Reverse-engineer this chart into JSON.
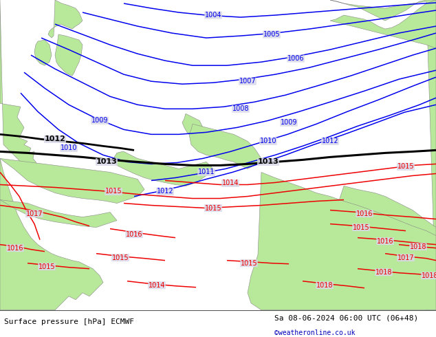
{
  "title_left": "Surface pressure [hPa] ECMWF",
  "title_right": "Sa 08-06-2024 06:00 UTC (06+48)",
  "copyright": "©weatheronline.co.uk",
  "bg_color": "#d8d8e8",
  "land_color": "#b8e89a",
  "coast_color": "#888888",
  "blue_color": "#0000ee",
  "black_color": "#000000",
  "red_color": "#ee0000",
  "footer_bg": "#ffffff",
  "copyright_color": "#0000bb",
  "figsize": [
    6.34,
    4.9
  ],
  "dpi": 100,
  "label_fs": 7,
  "footer_fs": 8
}
